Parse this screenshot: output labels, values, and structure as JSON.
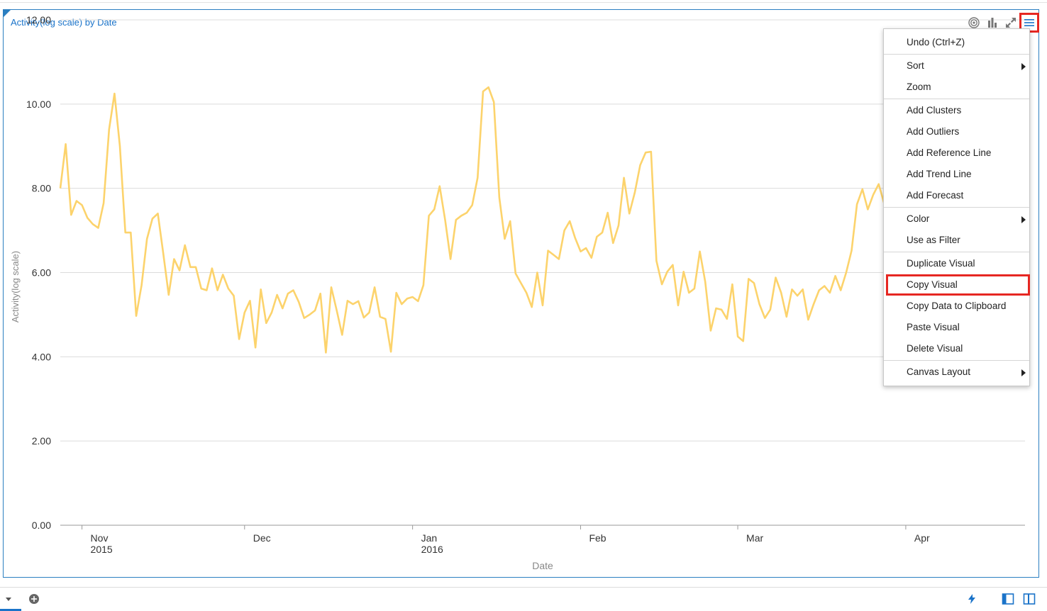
{
  "visual": {
    "title": "Activity(log scale) by Date",
    "icons": [
      "target-icon",
      "bar-chart-icon",
      "maximize-icon",
      "hamburger-menu-icon"
    ]
  },
  "chart_data": {
    "type": "line",
    "xlabel": "Date",
    "ylabel": "Activity(log scale)",
    "ylim": [
      0,
      12
    ],
    "yticks": [
      "0.00",
      "2.00",
      "4.00",
      "6.00",
      "8.00",
      "10.00",
      "12.00"
    ],
    "xticks": [
      {
        "date": "2015-11-01",
        "line1": "Nov",
        "line2": "2015"
      },
      {
        "date": "2015-12-01",
        "line1": "Dec",
        "line2": ""
      },
      {
        "date": "2016-01-01",
        "line1": "Jan",
        "line2": "2016"
      },
      {
        "date": "2016-02-01",
        "line1": "Feb",
        "line2": ""
      },
      {
        "date": "2016-03-01",
        "line1": "Mar",
        "line2": ""
      },
      {
        "date": "2016-04-01",
        "line1": "Apr",
        "line2": ""
      }
    ],
    "grid": true,
    "color": "#fcd36c",
    "series": [
      {
        "points": [
          [
            "2015-10-28",
            8.0
          ],
          [
            "2015-10-29",
            9.05
          ],
          [
            "2015-10-30",
            7.37
          ],
          [
            "2015-10-31",
            7.7
          ],
          [
            "2015-11-01",
            7.6
          ],
          [
            "2015-11-02",
            7.3
          ],
          [
            "2015-11-03",
            7.15
          ],
          [
            "2015-11-04",
            7.06
          ],
          [
            "2015-11-05",
            7.65
          ],
          [
            "2015-11-06",
            9.4
          ],
          [
            "2015-11-07",
            10.25
          ],
          [
            "2015-11-08",
            9.0
          ],
          [
            "2015-11-09",
            6.95
          ],
          [
            "2015-11-10",
            6.95
          ],
          [
            "2015-11-11",
            4.97
          ],
          [
            "2015-11-12",
            5.7
          ],
          [
            "2015-11-13",
            6.8
          ],
          [
            "2015-11-14",
            7.28
          ],
          [
            "2015-11-15",
            7.4
          ],
          [
            "2015-11-16",
            6.45
          ],
          [
            "2015-11-17",
            5.47
          ],
          [
            "2015-11-18",
            6.32
          ],
          [
            "2015-11-19",
            6.05
          ],
          [
            "2015-11-20",
            6.65
          ],
          [
            "2015-11-21",
            6.13
          ],
          [
            "2015-11-22",
            6.13
          ],
          [
            "2015-11-23",
            5.62
          ],
          [
            "2015-11-24",
            5.58
          ],
          [
            "2015-11-25",
            6.1
          ],
          [
            "2015-11-26",
            5.58
          ],
          [
            "2015-11-27",
            5.95
          ],
          [
            "2015-11-28",
            5.62
          ],
          [
            "2015-11-29",
            5.45
          ],
          [
            "2015-11-30",
            4.42
          ],
          [
            "2015-12-01",
            5.05
          ],
          [
            "2015-12-02",
            5.33
          ],
          [
            "2015-12-03",
            4.22
          ],
          [
            "2015-12-04",
            5.6
          ],
          [
            "2015-12-05",
            4.8
          ],
          [
            "2015-12-06",
            5.05
          ],
          [
            "2015-12-07",
            5.47
          ],
          [
            "2015-12-08",
            5.15
          ],
          [
            "2015-12-09",
            5.5
          ],
          [
            "2015-12-10",
            5.58
          ],
          [
            "2015-12-11",
            5.3
          ],
          [
            "2015-12-12",
            4.92
          ],
          [
            "2015-12-13",
            5.0
          ],
          [
            "2015-12-14",
            5.1
          ],
          [
            "2015-12-15",
            5.5
          ],
          [
            "2015-12-16",
            4.1
          ],
          [
            "2015-12-17",
            5.65
          ],
          [
            "2015-12-18",
            5.1
          ],
          [
            "2015-12-19",
            4.52
          ],
          [
            "2015-12-20",
            5.33
          ],
          [
            "2015-12-21",
            5.25
          ],
          [
            "2015-12-22",
            5.32
          ],
          [
            "2015-12-23",
            4.93
          ],
          [
            "2015-12-24",
            5.05
          ],
          [
            "2015-12-25",
            5.65
          ],
          [
            "2015-12-26",
            4.95
          ],
          [
            "2015-12-27",
            4.9
          ],
          [
            "2015-12-28",
            4.12
          ],
          [
            "2015-12-29",
            5.52
          ],
          [
            "2015-12-30",
            5.25
          ],
          [
            "2015-12-31",
            5.38
          ],
          [
            "2016-01-01",
            5.42
          ],
          [
            "2016-01-02",
            5.32
          ],
          [
            "2016-01-03",
            5.7
          ],
          [
            "2016-01-04",
            7.35
          ],
          [
            "2016-01-05",
            7.5
          ],
          [
            "2016-01-06",
            8.05
          ],
          [
            "2016-01-07",
            7.25
          ],
          [
            "2016-01-08",
            6.32
          ],
          [
            "2016-01-09",
            7.25
          ],
          [
            "2016-01-10",
            7.35
          ],
          [
            "2016-01-11",
            7.42
          ],
          [
            "2016-01-12",
            7.6
          ],
          [
            "2016-01-13",
            8.25
          ],
          [
            "2016-01-14",
            10.3
          ],
          [
            "2016-01-15",
            10.4
          ],
          [
            "2016-01-16",
            10.05
          ],
          [
            "2016-01-17",
            7.78
          ],
          [
            "2016-01-18",
            6.8
          ],
          [
            "2016-01-19",
            7.22
          ],
          [
            "2016-01-20",
            5.98
          ],
          [
            "2016-01-21",
            5.75
          ],
          [
            "2016-01-22",
            5.52
          ],
          [
            "2016-01-23",
            5.18
          ],
          [
            "2016-01-24",
            6.0
          ],
          [
            "2016-01-25",
            5.22
          ],
          [
            "2016-01-26",
            6.52
          ],
          [
            "2016-01-27",
            6.42
          ],
          [
            "2016-01-28",
            6.32
          ],
          [
            "2016-01-29",
            7.0
          ],
          [
            "2016-01-30",
            7.22
          ],
          [
            "2016-01-31",
            6.82
          ],
          [
            "2016-02-01",
            6.5
          ],
          [
            "2016-02-02",
            6.58
          ],
          [
            "2016-02-03",
            6.35
          ],
          [
            "2016-02-04",
            6.85
          ],
          [
            "2016-02-05",
            6.95
          ],
          [
            "2016-02-06",
            7.42
          ],
          [
            "2016-02-07",
            6.7
          ],
          [
            "2016-02-08",
            7.12
          ],
          [
            "2016-02-09",
            8.25
          ],
          [
            "2016-02-10",
            7.4
          ],
          [
            "2016-02-11",
            7.9
          ],
          [
            "2016-02-12",
            8.55
          ],
          [
            "2016-02-13",
            8.85
          ],
          [
            "2016-02-14",
            8.87
          ],
          [
            "2016-02-15",
            6.28
          ],
          [
            "2016-02-16",
            5.72
          ],
          [
            "2016-02-17",
            6.02
          ],
          [
            "2016-02-18",
            6.18
          ],
          [
            "2016-02-19",
            5.22
          ],
          [
            "2016-02-20",
            6.02
          ],
          [
            "2016-02-21",
            5.52
          ],
          [
            "2016-02-22",
            5.62
          ],
          [
            "2016-02-23",
            6.5
          ],
          [
            "2016-02-24",
            5.78
          ],
          [
            "2016-02-25",
            4.62
          ],
          [
            "2016-02-26",
            5.15
          ],
          [
            "2016-02-27",
            5.12
          ],
          [
            "2016-02-28",
            4.9
          ],
          [
            "2016-02-29",
            5.72
          ],
          [
            "2016-03-01",
            4.48
          ],
          [
            "2016-03-02",
            4.37
          ],
          [
            "2016-03-03",
            5.85
          ],
          [
            "2016-03-04",
            5.75
          ],
          [
            "2016-03-05",
            5.25
          ],
          [
            "2016-03-06",
            4.92
          ],
          [
            "2016-03-07",
            5.12
          ],
          [
            "2016-03-08",
            5.88
          ],
          [
            "2016-03-09",
            5.52
          ],
          [
            "2016-03-10",
            4.95
          ],
          [
            "2016-03-11",
            5.6
          ],
          [
            "2016-03-12",
            5.45
          ],
          [
            "2016-03-13",
            5.6
          ],
          [
            "2016-03-14",
            4.88
          ],
          [
            "2016-03-15",
            5.25
          ],
          [
            "2016-03-16",
            5.58
          ],
          [
            "2016-03-17",
            5.68
          ],
          [
            "2016-03-18",
            5.52
          ],
          [
            "2016-03-19",
            5.92
          ],
          [
            "2016-03-20",
            5.58
          ],
          [
            "2016-03-21",
            6.0
          ],
          [
            "2016-03-22",
            6.52
          ],
          [
            "2016-03-23",
            7.62
          ],
          [
            "2016-03-24",
            7.98
          ],
          [
            "2016-03-25",
            7.5
          ],
          [
            "2016-03-26",
            7.85
          ],
          [
            "2016-03-27",
            8.1
          ],
          [
            "2016-03-28",
            7.65
          ],
          [
            "2016-03-29",
            7.38
          ],
          [
            "2016-03-30",
            7.7
          ]
        ]
      }
    ]
  },
  "context_menu": {
    "groups": [
      [
        {
          "label": "Undo (Ctrl+Z)",
          "submenu": false
        }
      ],
      [
        {
          "label": "Sort",
          "submenu": true
        },
        {
          "label": "Zoom",
          "submenu": false
        }
      ],
      [
        {
          "label": "Add Clusters",
          "submenu": false
        },
        {
          "label": "Add Outliers",
          "submenu": false
        },
        {
          "label": "Add Reference Line",
          "submenu": false
        },
        {
          "label": "Add Trend Line",
          "submenu": false
        },
        {
          "label": "Add Forecast",
          "submenu": false
        }
      ],
      [
        {
          "label": "Color",
          "submenu": true
        },
        {
          "label": "Use as Filter",
          "submenu": false
        }
      ],
      [
        {
          "label": "Duplicate Visual",
          "submenu": false
        },
        {
          "label": "Copy Visual",
          "submenu": false,
          "highlighted": true
        },
        {
          "label": "Copy Data to Clipboard",
          "submenu": false
        },
        {
          "label": "Paste Visual",
          "submenu": false
        },
        {
          "label": "Delete Visual",
          "submenu": false
        }
      ],
      [
        {
          "label": "Canvas Layout",
          "submenu": true
        }
      ]
    ]
  },
  "bottom_bar": {
    "icons": [
      "dropdown-arrow-icon",
      "add-canvas-icon",
      "lightning-icon",
      "left-panel-icon",
      "right-panel-icon"
    ]
  },
  "colors": {
    "accent": "#1a73c9",
    "highlight_box": "#e62722",
    "line": "#fcd36c",
    "grid": "#dcdcdc"
  }
}
